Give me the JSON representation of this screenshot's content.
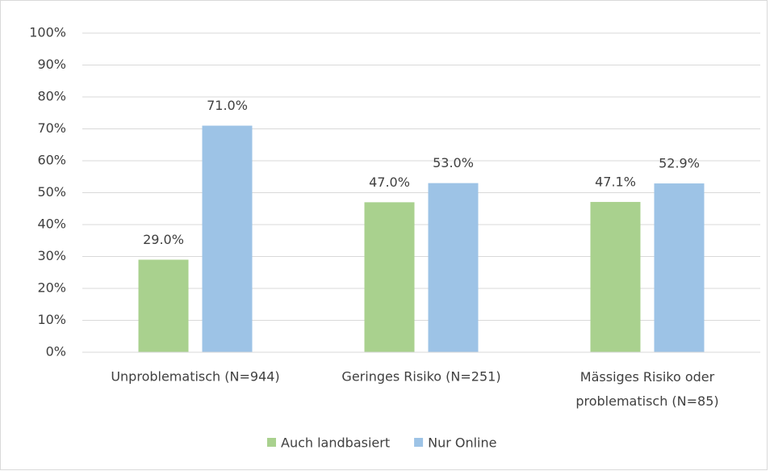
{
  "chart_data": {
    "type": "bar",
    "categories": [
      "Unproblematisch (N=944)",
      "Geringes Risiko (N=251)",
      "Mässiges Risiko oder problematisch (N=85)"
    ],
    "series": [
      {
        "name": "Auch landbasiert",
        "color": "#a9d18e",
        "values": [
          29.0,
          47.0,
          47.1
        ],
        "value_labels": [
          "29.0%",
          "47.0%",
          "47.1%"
        ]
      },
      {
        "name": "Nur Online",
        "color": "#9dc3e6",
        "values": [
          71.0,
          53.0,
          52.9
        ],
        "value_labels": [
          "71.0%",
          "53.0%",
          "52.9%"
        ]
      }
    ],
    "ylim": [
      0,
      100
    ],
    "yticks": [
      {
        "value": 0,
        "label": "0%"
      },
      {
        "value": 10,
        "label": "10%"
      },
      {
        "value": 20,
        "label": "20%"
      },
      {
        "value": 30,
        "label": "30%"
      },
      {
        "value": 40,
        "label": "40%"
      },
      {
        "value": 50,
        "label": "50%"
      },
      {
        "value": 60,
        "label": "60%"
      },
      {
        "value": 70,
        "label": "70%"
      },
      {
        "value": 80,
        "label": "80%"
      },
      {
        "value": 90,
        "label": "90%"
      },
      {
        "value": 100,
        "label": "100%"
      }
    ],
    "grid": true,
    "legend": "bottom"
  }
}
